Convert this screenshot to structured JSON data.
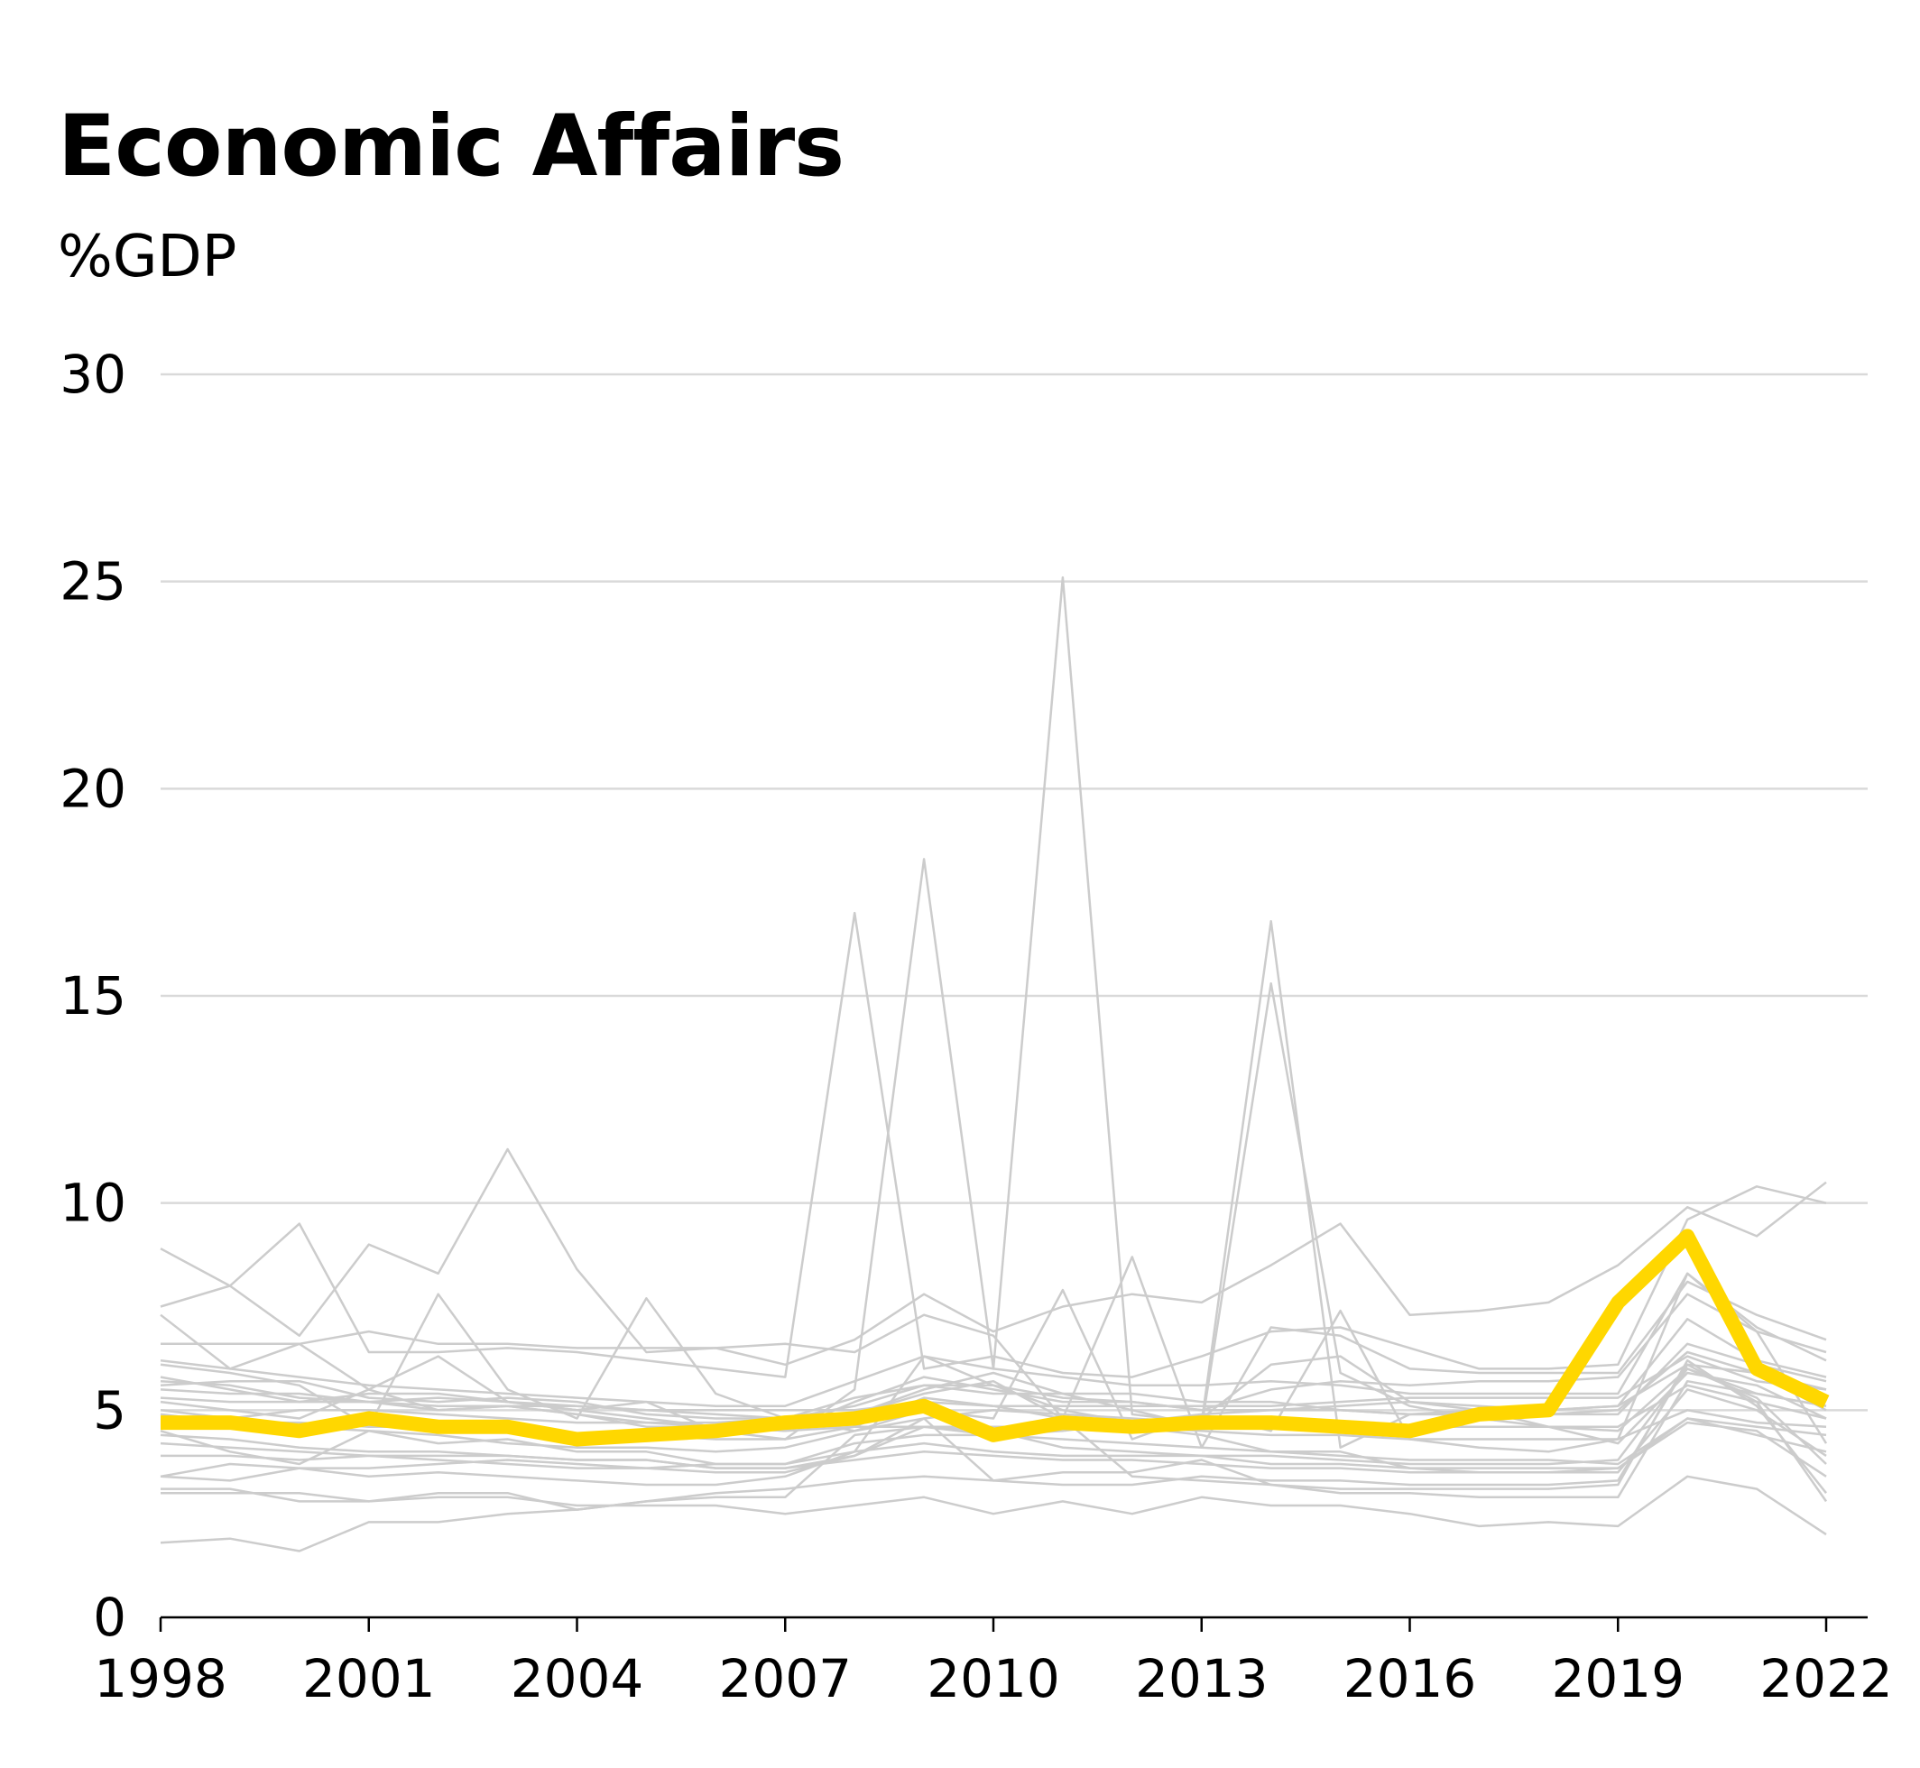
{
  "chart_data": {
    "type": "line",
    "title": "Economic Affairs",
    "ylabel": "%GDP",
    "xlabel": "",
    "ylim": [
      0,
      30
    ],
    "yticks": [
      0,
      5,
      10,
      15,
      20,
      25,
      30
    ],
    "xticks": [
      1998,
      2001,
      2004,
      2007,
      2010,
      2013,
      2016,
      2019,
      2022
    ],
    "x": [
      1998,
      1999,
      2000,
      2001,
      2002,
      2003,
      2004,
      2005,
      2006,
      2007,
      2008,
      2009,
      2010,
      2011,
      2012,
      2013,
      2014,
      2015,
      2016,
      2017,
      2018,
      2019,
      2020,
      2021,
      2022
    ],
    "highlight_color": "#FFD700",
    "background_color": "#cccccc",
    "series": [
      {
        "name": "highlight",
        "highlight": true,
        "values": [
          4.7,
          4.7,
          4.5,
          4.8,
          4.6,
          4.6,
          4.3,
          4.4,
          4.5,
          4.7,
          4.8,
          5.1,
          4.4,
          4.7,
          4.6,
          4.7,
          4.7,
          4.6,
          4.5,
          4.9,
          5.0,
          7.6,
          9.2,
          6.0,
          5.2
        ]
      },
      {
        "name": "s1",
        "values": [
          7.3,
          6.0,
          6.6,
          5.5,
          6.3,
          5.2,
          5.0,
          5.2,
          4.5,
          4.3,
          5.5,
          18.3,
          6.0,
          25.1,
          4.9,
          4.7,
          16.8,
          4.1,
          4.9,
          5.0,
          4.6,
          4.2,
          5.9,
          5.6,
          4.8
        ]
      },
      {
        "name": "s2",
        "values": [
          5.8,
          5.5,
          5.2,
          5.4,
          5.4,
          5.2,
          5.0,
          4.8,
          4.6,
          4.7,
          4.9,
          5.5,
          5.9,
          5.4,
          5.0,
          4.6,
          15.3,
          5.9,
          5.1,
          4.8,
          4.6,
          4.5,
          6.0,
          5.4,
          5.1
        ]
      },
      {
        "name": "s3",
        "values": [
          8.9,
          8.0,
          6.8,
          9.0,
          8.3,
          11.3,
          8.4,
          6.4,
          6.5,
          6.1,
          6.7,
          7.8,
          6.9,
          7.5,
          7.8,
          7.6,
          8.5,
          9.5,
          7.3,
          7.4,
          7.6,
          8.5,
          9.9,
          9.2,
          10.5
        ]
      },
      {
        "name": "s4",
        "values": [
          7.5,
          8.0,
          9.5,
          6.4,
          6.4,
          6.5,
          6.4,
          6.2,
          6.0,
          5.8,
          17.0,
          6.0,
          6.3,
          5.9,
          5.8,
          6.3,
          6.9,
          7.0,
          6.5,
          6.0,
          6.0,
          6.1,
          9.6,
          10.4,
          10.0
        ]
      },
      {
        "name": "s5",
        "values": [
          6.1,
          5.9,
          5.6,
          4.6,
          7.8,
          5.5,
          4.8,
          7.7,
          5.4,
          4.8,
          4.5,
          5.0,
          4.8,
          7.9,
          4.3,
          4.9,
          4.5,
          7.4,
          4.3,
          4.1,
          4.0,
          4.3,
          8.3,
          6.9,
          4.2
        ]
      },
      {
        "name": "s6",
        "values": [
          6.6,
          6.6,
          6.6,
          6.9,
          6.6,
          6.6,
          6.5,
          6.5,
          6.5,
          6.6,
          6.4,
          7.3,
          6.8,
          4.8,
          8.7,
          4.1,
          7.0,
          6.8,
          6.0,
          5.9,
          5.9,
          5.9,
          8.1,
          7.3,
          6.7
        ]
      },
      {
        "name": "s7",
        "values": [
          5.5,
          5.4,
          5.4,
          5.2,
          5.0,
          5.1,
          4.9,
          4.7,
          4.7,
          4.8,
          4.9,
          5.4,
          5.7,
          4.8,
          3.4,
          3.3,
          3.2,
          3.1,
          3.1,
          3.1,
          3.1,
          3.2,
          6.2,
          5.1,
          3.0
        ]
      },
      {
        "name": "s8",
        "values": [
          4.5,
          4.0,
          3.7,
          4.5,
          4.2,
          4.3,
          4.0,
          4.0,
          3.7,
          3.7,
          4.0,
          6.3,
          5.6,
          5.0,
          4.7,
          4.8,
          6.1,
          6.3,
          5.2,
          5.1,
          5.0,
          5.1,
          6.1,
          5.9,
          5.0
        ]
      },
      {
        "name": "s9",
        "values": [
          5.0,
          4.8,
          4.6,
          4.5,
          4.4,
          4.2,
          4.1,
          4.1,
          4.0,
          4.1,
          4.5,
          4.8,
          5.0,
          4.9,
          4.8,
          4.7,
          4.7,
          4.6,
          4.6,
          4.6,
          4.6,
          4.6,
          5.6,
          5.2,
          4.8
        ]
      },
      {
        "name": "s10",
        "values": [
          3.4,
          3.7,
          3.6,
          3.6,
          3.7,
          3.8,
          3.7,
          3.6,
          3.7,
          3.7,
          4.2,
          4.4,
          4.4,
          4.3,
          4.2,
          4.1,
          4.0,
          3.9,
          3.8,
          3.8,
          3.8,
          3.7,
          4.8,
          4.6,
          4.4
        ]
      },
      {
        "name": "s11",
        "values": [
          3.1,
          3.1,
          2.8,
          2.8,
          3.0,
          3.0,
          2.6,
          2.8,
          2.9,
          2.9,
          4.4,
          4.6,
          4.6,
          4.6,
          4.6,
          4.4,
          4.0,
          4.0,
          3.6,
          3.5,
          3.5,
          3.5,
          5.5,
          5.0,
          3.9
        ]
      },
      {
        "name": "s12",
        "values": [
          1.8,
          1.9,
          1.6,
          2.3,
          2.3,
          2.5,
          2.6,
          2.8,
          3.0,
          3.1,
          3.3,
          3.4,
          3.3,
          3.5,
          3.5,
          3.8,
          3.2,
          3.0,
          3.0,
          2.9,
          2.9,
          2.9,
          5.7,
          5.4,
          5.1
        ]
      },
      {
        "name": "s13",
        "values": [
          5.3,
          5.2,
          5.2,
          5.2,
          5.1,
          5.1,
          5.1,
          5.0,
          5.0,
          5.0,
          5.0,
          5.2,
          5.1,
          5.1,
          5.1,
          5.1,
          5.1,
          5.2,
          5.3,
          5.3,
          5.3,
          5.3,
          6.3,
          5.7,
          5.5
        ]
      },
      {
        "name": "s14",
        "values": [
          4.9,
          4.7,
          4.7,
          4.6,
          4.6,
          4.5,
          4.4,
          4.4,
          4.3,
          4.3,
          4.6,
          5.3,
          5.1,
          4.8,
          4.6,
          4.5,
          4.4,
          4.4,
          4.3,
          4.3,
          4.3,
          4.3,
          5.0,
          4.7,
          4.6
        ]
      },
      {
        "name": "s15",
        "values": [
          3.9,
          3.9,
          3.8,
          3.9,
          3.9,
          3.9,
          3.8,
          3.8,
          3.6,
          3.6,
          3.8,
          4.0,
          3.9,
          3.8,
          3.8,
          3.7,
          3.6,
          3.6,
          3.5,
          3.5,
          3.5,
          3.6,
          4.8,
          4.4,
          4.0
        ]
      },
      {
        "name": "s16",
        "values": [
          5.7,
          5.6,
          5.3,
          5.2,
          5.3,
          5.2,
          5.1,
          5.0,
          4.9,
          4.8,
          5.3,
          5.6,
          5.6,
          5.3,
          5.2,
          5.0,
          5.5,
          5.7,
          5.6,
          5.7,
          5.7,
          5.8,
          7.8,
          6.9,
          6.4
        ]
      },
      {
        "name": "s17",
        "values": [
          4.4,
          4.3,
          4.1,
          4.0,
          4.0,
          3.9,
          3.8,
          3.8,
          3.6,
          3.6,
          3.9,
          4.6,
          4.5,
          4.1,
          4.0,
          3.9,
          3.9,
          3.8,
          3.7,
          3.7,
          3.7,
          3.8,
          6.0,
          5.3,
          3.7
        ]
      },
      {
        "name": "s18",
        "values": [
          4.2,
          4.1,
          4.0,
          3.9,
          3.8,
          3.7,
          3.6,
          3.6,
          3.5,
          3.5,
          3.9,
          4.8,
          3.3,
          3.2,
          3.2,
          3.4,
          3.3,
          3.3,
          3.2,
          3.2,
          3.2,
          3.3,
          6.1,
          5.2,
          2.8
        ]
      },
      {
        "name": "s19",
        "values": [
          6.2,
          6.0,
          5.8,
          5.6,
          5.5,
          5.4,
          5.3,
          5.2,
          5.1,
          5.1,
          5.7,
          6.3,
          6.0,
          5.8,
          5.6,
          5.6,
          5.7,
          5.6,
          5.4,
          5.4,
          5.4,
          5.4,
          8.3,
          7.0,
          6.2
        ]
      },
      {
        "name": "s20",
        "values": [
          3.4,
          3.3,
          3.6,
          3.4,
          3.5,
          3.4,
          3.3,
          3.2,
          3.2,
          3.4,
          4.0,
          4.2,
          4.0,
          3.9,
          3.9,
          3.9,
          3.7,
          3.7,
          3.6,
          3.6,
          3.6,
          3.6,
          4.7,
          4.5,
          3.4
        ]
      },
      {
        "name": "s21",
        "values": [
          5.2,
          5.0,
          4.8,
          5.5,
          5.0,
          5.1,
          4.9,
          4.6,
          4.6,
          4.5,
          5.2,
          5.8,
          5.5,
          5.2,
          5.2,
          5.0,
          5.0,
          5.1,
          5.2,
          5.0,
          5.0,
          5.1,
          7.2,
          6.2,
          5.8
        ]
      },
      {
        "name": "s22",
        "values": [
          4.8,
          4.8,
          5.0,
          5.0,
          4.9,
          4.8,
          4.7,
          4.7,
          4.6,
          4.5,
          4.6,
          4.6,
          4.4,
          4.5,
          4.7,
          4.9,
          5.0,
          5.0,
          4.9,
          4.9,
          4.9,
          5.0,
          6.4,
          5.9,
          5.5
        ]
      },
      {
        "name": "s23",
        "values": [
          3.0,
          3.0,
          3.0,
          2.8,
          2.9,
          2.9,
          2.7,
          2.7,
          2.7,
          2.5,
          2.7,
          2.9,
          2.5,
          2.8,
          2.5,
          2.9,
          2.7,
          2.7,
          2.5,
          2.2,
          2.3,
          2.2,
          3.4,
          3.1,
          2.0
        ]
      },
      {
        "name": "s24",
        "values": [
          5.6,
          5.7,
          5.7,
          5.3,
          5.2,
          5.3,
          5.2,
          4.9,
          4.8,
          4.8,
          5.1,
          5.6,
          5.4,
          5.4,
          5.4,
          5.2,
          5.2,
          5.0,
          4.9,
          4.9,
          4.9,
          4.9,
          6.6,
          6.1,
          5.7
        ]
      }
    ]
  }
}
